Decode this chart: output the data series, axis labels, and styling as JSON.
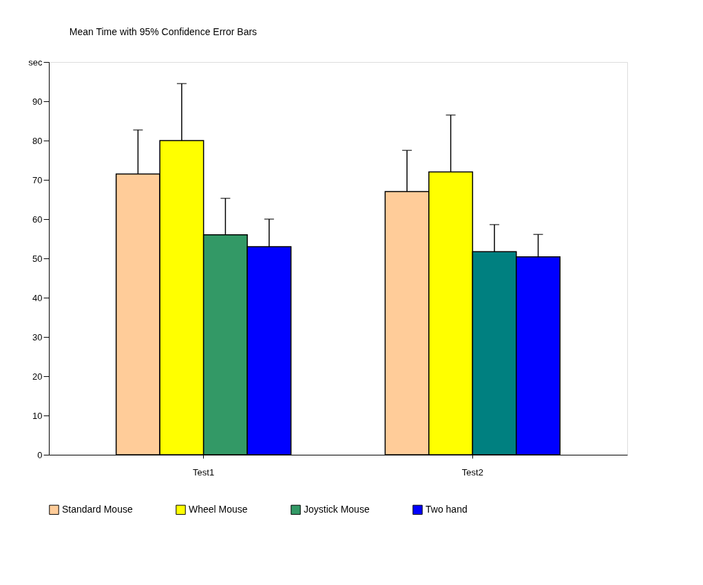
{
  "chart_data": {
    "type": "bar",
    "title": "Mean Time with 95% Confidence Error Bars",
    "categories": [
      "Test1",
      "Test2"
    ],
    "series": [
      {
        "name": "Standard Mouse",
        "color": "#ffcc99",
        "values": [
          71.5,
          67
        ],
        "errors": [
          [
            71.5,
            82.7
          ],
          [
            67,
            77.5
          ]
        ]
      },
      {
        "name": "Wheel Mouse",
        "color": "#ffff00",
        "values": [
          80,
          72
        ],
        "errors": [
          [
            80,
            94.5
          ],
          [
            72,
            86.5
          ]
        ]
      },
      {
        "name": "Joystick Mouse",
        "color": "#339966",
        "colors": [
          "#339966",
          "#008080"
        ],
        "values": [
          56,
          51.7
        ],
        "errors": [
          [
            56,
            65.3
          ],
          [
            51.7,
            58.6
          ]
        ]
      },
      {
        "name": "Two hand",
        "color": "#0000ff",
        "values": [
          53,
          50.4
        ],
        "errors": [
          [
            53,
            60
          ],
          [
            50.4,
            56.1
          ]
        ]
      }
    ],
    "ylim": [
      0,
      100
    ],
    "yticks": [
      0,
      10,
      20,
      30,
      40,
      50,
      60,
      70,
      80,
      90,
      {
        "value": 100,
        "label": "sec"
      }
    ],
    "grid": false,
    "legend": "bottom"
  }
}
